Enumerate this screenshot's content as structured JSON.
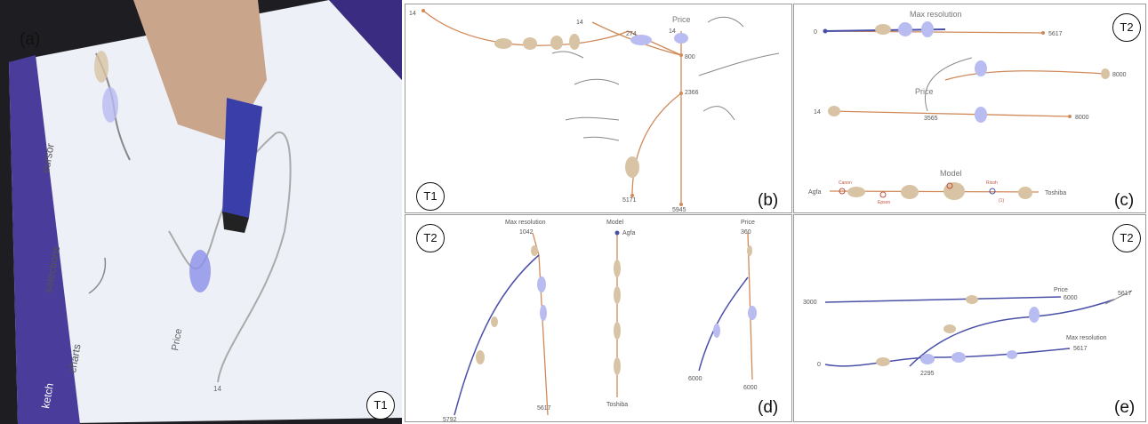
{
  "panels": {
    "a": {
      "label": "(a)",
      "badge": "T1",
      "ui": {
        "selections": "selections",
        "charts": "charts",
        "cursor": "cursor",
        "sketch": "ketch",
        "price": "Price",
        "value_14": "14"
      }
    },
    "b": {
      "label": "(b)",
      "badge": "T1",
      "axis_price": "Price",
      "v14_left": "14",
      "v14_mid": "14",
      "v14_top": "14",
      "v274": "274",
      "v800": "800",
      "v2366": "2366",
      "v5171": "5171",
      "v5945": "5945"
    },
    "c": {
      "label": "(c)",
      "badge": "T2",
      "max_res": "Max resolution",
      "v0": "0",
      "v5617": "5617",
      "v8000a": "8000",
      "price": "Price",
      "v14": "14",
      "v3565": "3565",
      "v8000b": "8000",
      "model": "Model",
      "agfa": "Agfa",
      "canon": "Canon",
      "epson": "Epson",
      "ricoh": "Ricoh",
      "toshiba": "Toshiba",
      "one": "(1)"
    },
    "d": {
      "label": "(d)",
      "badge": "T2",
      "max_res": "Max resolution",
      "v1042": "1042",
      "v5617": "5617",
      "v5792": "5792",
      "model": "Model",
      "agfa": "Agfa",
      "toshiba": "Toshiba",
      "price": "Price",
      "v360": "360",
      "v6000a": "6000",
      "v6000b": "6000"
    },
    "e": {
      "label": "(e)",
      "badge": "T2",
      "price": "Price",
      "v3000": "3000",
      "v6000": "6000",
      "v5617a": "5617",
      "max_res": "Max resolution",
      "v0": "0",
      "v2295": "2295",
      "v5617b": "5617"
    }
  },
  "colors": {
    "line": "#d08a5a",
    "violin": "#d8c4a4",
    "selection": "#7a80d8",
    "axis_blue": "#4a50a8"
  }
}
